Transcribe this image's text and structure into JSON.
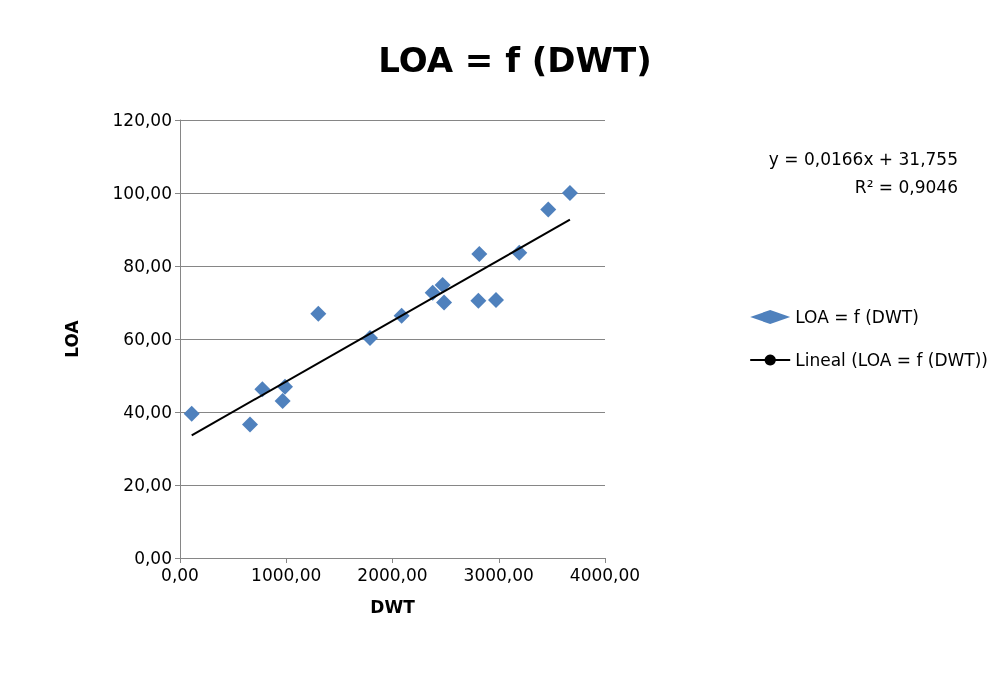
{
  "chart_data": {
    "type": "scatter",
    "title": "LOA = f (DWT)",
    "xlabel": "DWT",
    "ylabel": "LOA",
    "annotations": [
      "y = 0,0166x + 31,755",
      "R² = 0,9046"
    ],
    "series": [
      {
        "name": "LOA = f (DWT)",
        "color": "#4f81bd",
        "marker": "diamond",
        "x": [
          110,
          659,
          775,
          966,
          988,
          1302,
          1788,
          2086,
          2378,
          2472,
          2485,
          2817,
          2808,
          2974,
          3193,
          3466,
          3670
        ],
        "values": [
          39.5,
          36.6,
          46.2,
          43.0,
          46.9,
          66.9,
          60.3,
          66.4,
          72.7,
          74.8,
          70.0,
          83.3,
          70.5,
          70.7,
          83.6,
          95.5,
          100.0
        ]
      },
      {
        "name": "Lineal (LOA = f (DWT))",
        "type": "line",
        "color": "#000000",
        "marker": "none",
        "line_style": "solid",
        "x": [
          110,
          3670
        ],
        "values": [
          33.6,
          92.7
        ]
      }
    ],
    "xlim": [
      0,
      4000
    ],
    "xticks": [
      {
        "value": 0,
        "label": "0,00"
      },
      {
        "value": 1000,
        "label": "1000,00"
      },
      {
        "value": 2000,
        "label": "2000,00"
      },
      {
        "value": 3000,
        "label": "3000,00"
      },
      {
        "value": 4000,
        "label": "4000,00"
      }
    ],
    "ylim": [
      0,
      120
    ],
    "yticks": [
      {
        "value": 0,
        "label": "0,00"
      },
      {
        "value": 20,
        "label": "20,00"
      },
      {
        "value": 40,
        "label": "40,00"
      },
      {
        "value": 60,
        "label": "60,00"
      },
      {
        "value": 80,
        "label": "80,00"
      },
      {
        "value": 100,
        "label": "100,00"
      },
      {
        "value": 120,
        "label": "120,00"
      }
    ],
    "grid": "y",
    "legend": "right"
  }
}
